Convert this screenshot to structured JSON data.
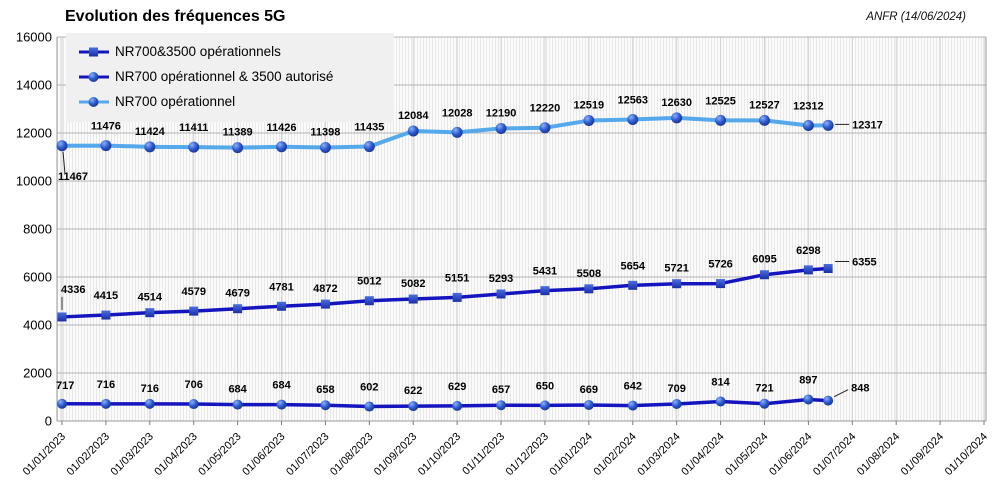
{
  "header": {
    "title": "Evolution des fréquences 5G",
    "source_note": "ANFR (14/06/2024)"
  },
  "chart_data": {
    "type": "line",
    "title": "Evolution des fréquences 5G",
    "annotation": "ANFR (14/06/2024)",
    "legend_position": "top-left",
    "grid": "horizontal major lines, monthly vertical lines, fine vertical stripes",
    "ylim": [
      0,
      16000
    ],
    "y_ticks": [
      0,
      2000,
      4000,
      6000,
      8000,
      10000,
      12000,
      14000,
      16000
    ],
    "x_tick_labels": [
      "01/01/2023",
      "01/02/2023",
      "01/03/2023",
      "01/04/2023",
      "01/05/2023",
      "01/06/2023",
      "01/07/2023",
      "01/08/2023",
      "01/09/2023",
      "01/10/2023",
      "01/11/2023",
      "01/12/2023",
      "01/01/2024",
      "01/02/2024",
      "01/03/2024",
      "01/04/2024",
      "01/05/2024",
      "01/06/2024",
      "01/07/2024",
      "01/08/2024",
      "01/09/2024",
      "01/10/2024"
    ],
    "categories": [
      "01/01/2023",
      "01/02/2023",
      "01/03/2023",
      "01/04/2023",
      "01/05/2023",
      "01/06/2023",
      "01/07/2023",
      "01/08/2023",
      "01/09/2023",
      "01/10/2023",
      "01/11/2023",
      "01/12/2023",
      "01/01/2024",
      "01/02/2024",
      "01/03/2024",
      "01/04/2024",
      "01/05/2024",
      "01/06/2024",
      "14/06/2024"
    ],
    "colors": {
      "dark_line": "#1515be",
      "light_line": "#55a9ea",
      "marker_fill": "#2d59cf",
      "marker_highlight": "#8cb2f4",
      "marker_edge": "#16348c",
      "grid_major": "#b3b3b3",
      "grid_month": "#d2d2d2",
      "legend_bg": "#f0f0f0"
    },
    "series": [
      {
        "name": "NR700&3500 opérationnels",
        "marker": "square",
        "line": "dark",
        "values": [
          4336,
          4415,
          4514,
          4579,
          4679,
          4781,
          4872,
          5012,
          5082,
          5151,
          5293,
          5431,
          5508,
          5654,
          5721,
          5726,
          6095,
          6298,
          6355
        ]
      },
      {
        "name": "NR700 opérationnel & 3500 autorisé",
        "marker": "circle",
        "line": "dark",
        "values": [
          717,
          716,
          716,
          706,
          684,
          684,
          658,
          602,
          622,
          629,
          657,
          650,
          669,
          642,
          709,
          814,
          721,
          897,
          848
        ]
      },
      {
        "name": "NR700 opérationnel",
        "marker": "circle",
        "line": "light",
        "values": [
          11467,
          11476,
          11424,
          11411,
          11389,
          11426,
          11398,
          11435,
          12084,
          12028,
          12190,
          12220,
          12519,
          12563,
          12630,
          12525,
          12527,
          12312,
          12317
        ]
      }
    ]
  }
}
